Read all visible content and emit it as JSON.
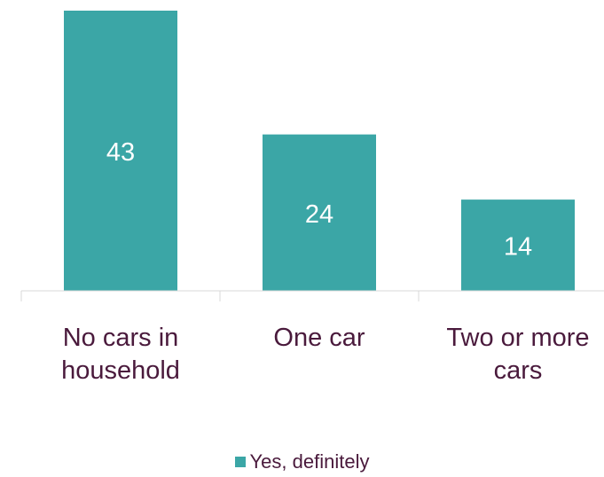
{
  "chart_data": {
    "type": "bar",
    "categories": [
      [
        "No cars in",
        "household"
      ],
      [
        "One car"
      ],
      [
        "Two or more",
        "cars"
      ]
    ],
    "series": [
      {
        "name": "Yes, definitely",
        "values": [
          43,
          24,
          14
        ],
        "color": "#3ba6a6"
      }
    ],
    "data_labels": [
      "43",
      "24",
      "14"
    ],
    "ylim": [
      0,
      46
    ],
    "grid": false,
    "legend_position": "bottom",
    "text_color": "#4a1a3c",
    "label_color": "#ffffff",
    "axis_color": "#d9d9d9"
  }
}
